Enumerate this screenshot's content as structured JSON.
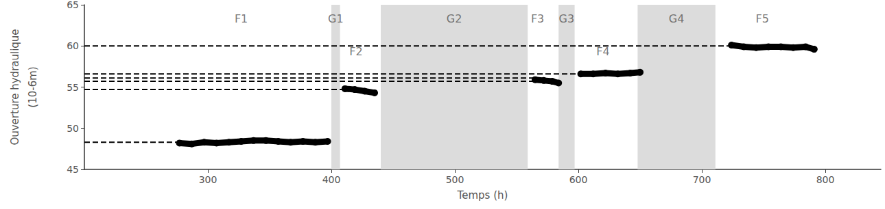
{
  "chart_data": {
    "type": "line",
    "x_label": "Temps (h)",
    "y_label": "Ouverture hydraulique\n(10-6m)",
    "xlim": [
      200,
      845
    ],
    "xticks": [
      300,
      400,
      500,
      600,
      700,
      800
    ],
    "ylim": [
      45,
      65
    ],
    "yticks": [
      45,
      50,
      55,
      60,
      65
    ],
    "grid": false,
    "marker": "circle",
    "line_style": "solid",
    "series": [
      {
        "name": "F1",
        "color": "#000000",
        "label_x": 327,
        "label_y": 63.3,
        "x": [
          277,
          287,
          297,
          307,
          317,
          327,
          337,
          347,
          357,
          367,
          377,
          387,
          397
        ],
        "values": [
          48.2,
          48.1,
          48.3,
          48.2,
          48.3,
          48.4,
          48.5,
          48.5,
          48.4,
          48.3,
          48.4,
          48.3,
          48.4
        ]
      },
      {
        "name": "F2",
        "color": "#000000",
        "label_x": 420,
        "label_y": 59.3,
        "x": [
          411,
          419,
          427,
          435
        ],
        "values": [
          54.8,
          54.7,
          54.5,
          54.3
        ]
      },
      {
        "name": "F3",
        "color": "#000000",
        "label_x": 567,
        "label_y": 63.3,
        "x": [
          565,
          572,
          579,
          584
        ],
        "values": [
          55.9,
          55.8,
          55.7,
          55.5
        ]
      },
      {
        "name": "F4",
        "color": "#000000",
        "label_x": 620,
        "label_y": 59.3,
        "x": [
          602,
          612,
          622,
          632,
          642,
          650
        ],
        "values": [
          56.6,
          56.6,
          56.7,
          56.6,
          56.7,
          56.8
        ]
      },
      {
        "name": "F5",
        "color": "#000000",
        "label_x": 749,
        "label_y": 63.3,
        "x": [
          724,
          734,
          744,
          754,
          764,
          774,
          784,
          791
        ],
        "values": [
          60.1,
          59.9,
          59.8,
          59.9,
          59.9,
          59.8,
          59.9,
          59.6
        ]
      }
    ],
    "regions": [
      {
        "label": "G1",
        "x": [
          400,
          407
        ],
        "label_y": 63.3,
        "color": "#dcdcdc"
      },
      {
        "label": "G2",
        "x": [
          440,
          559
        ],
        "label_y": 63.3,
        "color": "#dcdcdc"
      },
      {
        "label": "G3",
        "x": [
          584,
          597
        ],
        "label_y": 63.3,
        "color": "#dcdcdc"
      },
      {
        "label": "G4",
        "x": [
          648,
          711
        ],
        "label_y": 63.3,
        "color": "#dcdcdc"
      }
    ],
    "reference_lines": [
      {
        "y": 60.0,
        "x_end": 724,
        "color": "#000000",
        "line_style": "dashed"
      },
      {
        "y": 56.6,
        "x_end": 602,
        "color": "#000000",
        "line_style": "dashed"
      },
      {
        "y": 56.1,
        "x_end": 565,
        "color": "#000000",
        "line_style": "dashed"
      },
      {
        "y": 55.7,
        "x_end": 565,
        "color": "#000000",
        "line_style": "dashed"
      },
      {
        "y": 54.7,
        "x_end": 411,
        "color": "#000000",
        "line_style": "dashed"
      },
      {
        "y": 48.3,
        "x_end": 277,
        "color": "#000000",
        "line_style": "dashed"
      }
    ]
  }
}
